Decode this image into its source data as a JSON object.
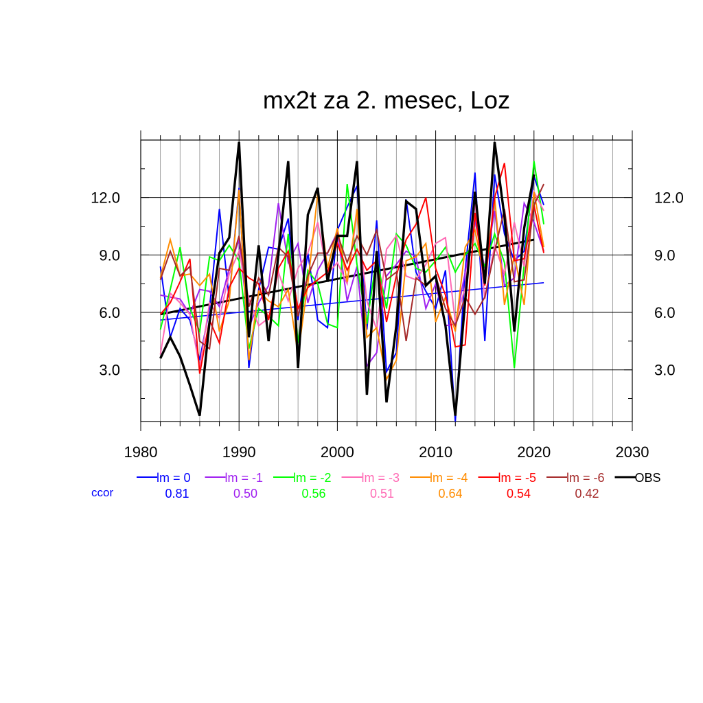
{
  "chart_data": {
    "type": "line",
    "title": "mx2t za 2. mesec, Loz",
    "xlim": [
      1980,
      2030
    ],
    "ylim": [
      0.3,
      15.0
    ],
    "x_ticks": [
      1980,
      1990,
      2000,
      2010,
      2020,
      2030
    ],
    "y_ticks": [
      3.0,
      6.0,
      9.0,
      12.0
    ],
    "x_tick_labels": [
      "1980",
      "1990",
      "2000",
      "2010",
      "2020",
      "2030"
    ],
    "y_tick_labels": [
      "3.0",
      "6.0",
      "9.0",
      "12.0"
    ],
    "grid": "on",
    "legend_position": "bottom",
    "ccor_label": "ccor",
    "series": [
      {
        "name": "lm = 0",
        "color": "#0000ff",
        "ccor": "0.81",
        "x": [
          1982,
          1983,
          1984,
          1985,
          1986,
          1987,
          1988,
          1989,
          1990,
          1991,
          1992,
          1993,
          1994,
          1995,
          1996,
          1997,
          1998,
          1999,
          2000,
          2001,
          2002,
          2003,
          2004,
          2005,
          2006,
          2007,
          2008,
          2009,
          2010,
          2011,
          2012,
          2013,
          2014,
          2015,
          2016,
          2017,
          2018,
          2019,
          2020,
          2021
        ],
        "y": [
          8.4,
          4.7,
          6.2,
          5.6,
          3.5,
          6.2,
          11.4,
          6.7,
          12.5,
          3.1,
          7.2,
          9.4,
          9.3,
          10.9,
          5.6,
          9.1,
          5.6,
          5.2,
          10.3,
          11.5,
          12.6,
          5.1,
          10.8,
          2.9,
          3.9,
          11.9,
          8.1,
          7.1,
          6.2,
          8.2,
          0.3,
          8.2,
          13.3,
          4.5,
          13.2,
          10.1,
          8.7,
          9.2,
          13.1,
          11.6
        ]
      },
      {
        "name": "lm = -1",
        "color": "#a020f0",
        "ccor": "0.50",
        "x": [
          1982,
          1983,
          1984,
          1985,
          1986,
          1987,
          1988,
          1989,
          1990,
          1991,
          1992,
          1993,
          1994,
          1995,
          1996,
          1997,
          1998,
          1999,
          2000,
          2001,
          2002,
          2003,
          2004,
          2005,
          2006,
          2007,
          2008,
          2009,
          2010,
          2011,
          2012,
          2013,
          2014,
          2015,
          2016,
          2017,
          2018,
          2019,
          2020,
          2021
        ],
        "y": [
          6.9,
          6.8,
          6.7,
          5.9,
          7.2,
          7.1,
          6.3,
          8.3,
          9.8,
          5.2,
          6.5,
          7.4,
          11.7,
          8.6,
          9.6,
          6.5,
          8.2,
          9.1,
          10.2,
          6.6,
          8.4,
          3.2,
          3.9,
          7.9,
          8.5,
          9.2,
          8.9,
          6.2,
          7.5,
          5.3,
          5.4,
          8.1,
          10.8,
          8.3,
          11.3,
          7.4,
          7.8,
          11.7,
          10.7,
          9.2
        ]
      },
      {
        "name": "lm = -2",
        "color": "#00ff00",
        "ccor": "0.56",
        "x": [
          1982,
          1983,
          1984,
          1985,
          1986,
          1987,
          1988,
          1989,
          1990,
          1991,
          1992,
          1993,
          1994,
          1995,
          1996,
          1997,
          1998,
          1999,
          2000,
          2001,
          2002,
          2003,
          2004,
          2005,
          2006,
          2007,
          2008,
          2009,
          2010,
          2011,
          2012,
          2013,
          2014,
          2015,
          2016,
          2017,
          2018,
          2019,
          2020,
          2021
        ],
        "y": [
          5.1,
          7.2,
          9.4,
          6.2,
          5.0,
          8.9,
          8.7,
          9.5,
          8.7,
          4.1,
          6.2,
          5.8,
          5.3,
          10.1,
          4.4,
          8.2,
          7.5,
          5.4,
          5.2,
          12.7,
          8.5,
          5.4,
          8.9,
          6.2,
          10.1,
          9.5,
          8.3,
          8.1,
          8.7,
          9.4,
          8.1,
          9.0,
          9.6,
          8.4,
          10.1,
          8.6,
          3.1,
          8.5,
          13.9,
          10.6
        ]
      },
      {
        "name": "lm = -3",
        "color": "#ff69b4",
        "ccor": "0.51",
        "x": [
          1982,
          1983,
          1984,
          1985,
          1986,
          1987,
          1988,
          1989,
          1990,
          1991,
          1992,
          1993,
          1994,
          1995,
          1996,
          1997,
          1998,
          1999,
          2000,
          2001,
          2002,
          2003,
          2004,
          2005,
          2006,
          2007,
          2008,
          2009,
          2010,
          2011,
          2012,
          2013,
          2014,
          2015,
          2016,
          2017,
          2018,
          2019,
          2020,
          2021
        ],
        "y": [
          3.8,
          7.0,
          6.5,
          5.9,
          3.1,
          6.5,
          5.7,
          8.0,
          9.2,
          6.7,
          5.3,
          5.7,
          8.1,
          6.6,
          8.3,
          9.1,
          10.7,
          8.0,
          8.6,
          7.5,
          11.2,
          6.6,
          5.1,
          9.3,
          10.0,
          7.9,
          7.7,
          8.5,
          9.6,
          9.9,
          5.5,
          7.3,
          11.8,
          6.7,
          9.5,
          8.0,
          10.7,
          8.4,
          12.3,
          11.3
        ]
      },
      {
        "name": "lm = -4",
        "color": "#ff8c00",
        "ccor": "0.64",
        "x": [
          1982,
          1983,
          1984,
          1985,
          1986,
          1987,
          1988,
          1989,
          1990,
          1991,
          1992,
          1993,
          1994,
          1995,
          1996,
          1997,
          1998,
          1999,
          2000,
          2001,
          2002,
          2003,
          2004,
          2005,
          2006,
          2007,
          2008,
          2009,
          2010,
          2011,
          2012,
          2013,
          2014,
          2015,
          2016,
          2017,
          2018,
          2019,
          2020,
          2021
        ],
        "y": [
          7.8,
          9.8,
          7.9,
          8.0,
          7.4,
          8.0,
          5.0,
          6.6,
          12.4,
          3.5,
          7.1,
          6.6,
          6.3,
          7.2,
          3.8,
          7.5,
          12.2,
          8.3,
          10.4,
          7.6,
          11.4,
          4.7,
          5.2,
          2.5,
          3.5,
          8.7,
          8.9,
          9.6,
          5.5,
          6.8,
          5.0,
          9.4,
          10.3,
          7.7,
          12.0,
          6.4,
          9.0,
          6.4,
          12.3,
          9.4
        ]
      },
      {
        "name": "lm = -5",
        "color": "#ff0000",
        "ccor": "0.54",
        "x": [
          1982,
          1983,
          1984,
          1985,
          1986,
          1987,
          1988,
          1989,
          1990,
          1991,
          1992,
          1993,
          1994,
          1995,
          1996,
          1997,
          1998,
          1999,
          2000,
          2001,
          2002,
          2003,
          2004,
          2005,
          2006,
          2007,
          2008,
          2009,
          2010,
          2011,
          2012,
          2013,
          2014,
          2015,
          2016,
          2017,
          2018,
          2019,
          2020,
          2021
        ],
        "y": [
          5.9,
          6.5,
          7.6,
          8.8,
          2.8,
          5.6,
          4.4,
          7.3,
          8.3,
          7.8,
          7.5,
          5.6,
          8.3,
          9.2,
          6.2,
          7.3,
          7.7,
          8.1,
          9.6,
          8.2,
          9.3,
          8.2,
          8.7,
          5.5,
          7.9,
          9.8,
          10.6,
          12.0,
          8.3,
          6.9,
          4.2,
          4.3,
          11.2,
          7.4,
          12.0,
          13.8,
          8.7,
          8.8,
          11.6,
          9.1
        ]
      },
      {
        "name": "lm = -6",
        "color": "#a52a2a",
        "ccor": "0.42",
        "x": [
          1982,
          1983,
          1984,
          1985,
          1986,
          1987,
          1988,
          1989,
          1990,
          1991,
          1992,
          1993,
          1994,
          1995,
          1996,
          1997,
          1998,
          1999,
          2000,
          2001,
          2002,
          2003,
          2004,
          2005,
          2006,
          2007,
          2008,
          2009,
          2010,
          2011,
          2012,
          2013,
          2014,
          2015,
          2016,
          2017,
          2018,
          2019,
          2020,
          2021
        ],
        "y": [
          7.7,
          9.2,
          7.9,
          8.4,
          4.5,
          4.1,
          8.3,
          8.2,
          10.0,
          6.3,
          7.8,
          6.9,
          9.4,
          8.9,
          5.8,
          7.9,
          9.1,
          9.1,
          10.1,
          8.6,
          10.0,
          9.0,
          10.3,
          7.7,
          8.1,
          4.5,
          7.8,
          7.4,
          7.9,
          6.2,
          5.3,
          6.8,
          5.9,
          6.8,
          9.2,
          11.4,
          7.6,
          7.7,
          11.6,
          12.7
        ]
      },
      {
        "name": "OBS",
        "color": "#000000",
        "ccor": "",
        "x": [
          1982,
          1983,
          1984,
          1985,
          1986,
          1987,
          1988,
          1989,
          1990,
          1991,
          1992,
          1993,
          1994,
          1995,
          1996,
          1997,
          1998,
          1999,
          2000,
          2001,
          2002,
          2003,
          2004,
          2005,
          2006,
          2007,
          2008,
          2009,
          2010,
          2011,
          2012,
          2013,
          2014,
          2015,
          2016,
          2017,
          2018,
          2019,
          2020
        ],
        "y": [
          3.6,
          4.7,
          3.7,
          2.2,
          0.6,
          5.5,
          9.1,
          9.9,
          14.9,
          4.7,
          9.5,
          4.5,
          9.0,
          13.9,
          3.1,
          11.1,
          12.5,
          7.6,
          10.0,
          10.0,
          13.9,
          1.7,
          9.2,
          1.3,
          5.3,
          11.8,
          11.4,
          7.4,
          7.9,
          5.3,
          0.6,
          6.6,
          12.3,
          7.5,
          14.9,
          11.0,
          5.0,
          10.4,
          13.2
        ]
      }
    ],
    "trend_lines": [
      {
        "color": "#0000ff",
        "x": [
          1982,
          2021
        ],
        "y": [
          5.6,
          7.55
        ]
      },
      {
        "color": "#000000",
        "x": [
          1982,
          2020
        ],
        "y": [
          5.9,
          9.8
        ]
      }
    ]
  }
}
